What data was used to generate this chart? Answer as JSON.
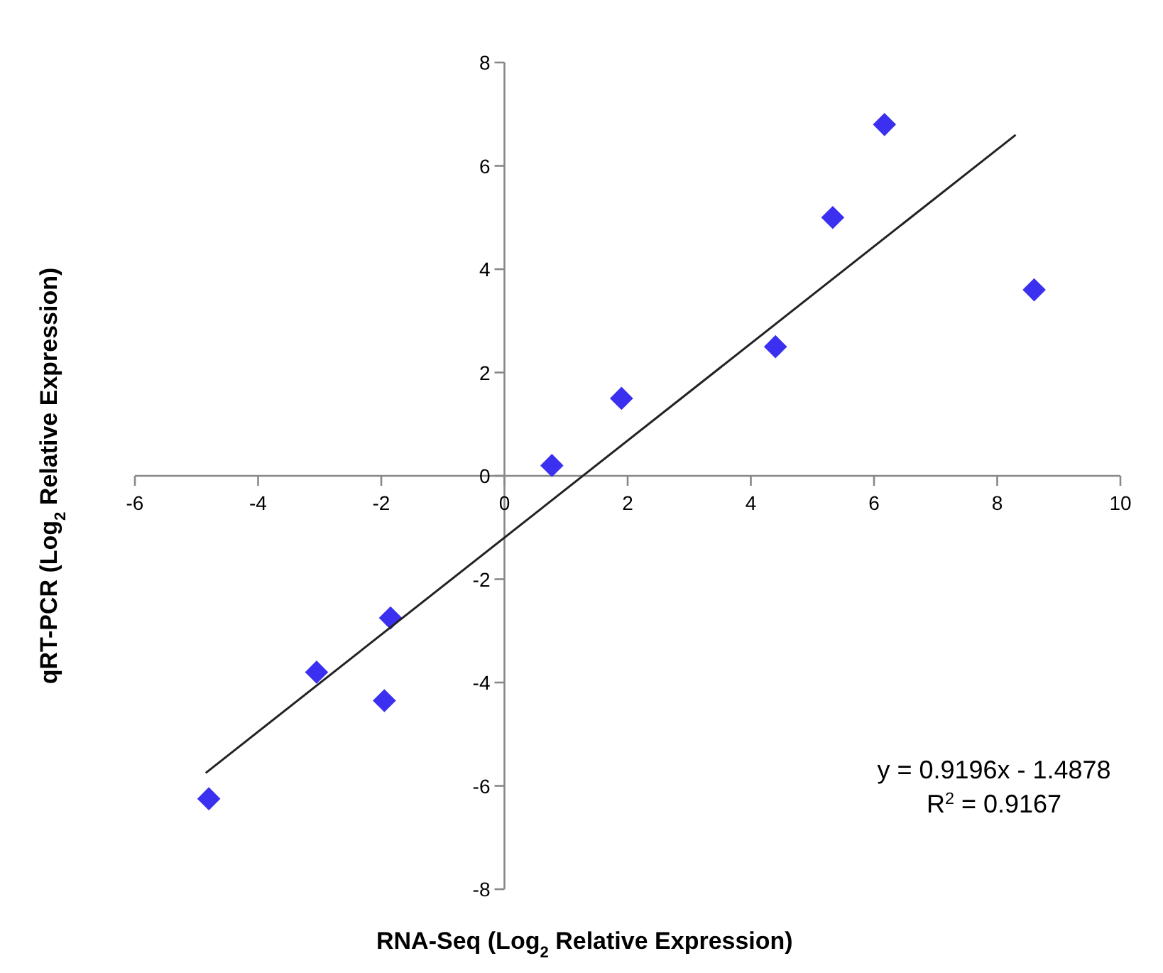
{
  "chart_data": {
    "type": "scatter",
    "xlabel": "RNA-Seq (Log$_{2}$ Relative Expression)",
    "ylabel": "qRT-PCR (Log$_{2}$ Relative Expression)",
    "xlim": [
      -6,
      10
    ],
    "ylim": [
      -8,
      8
    ],
    "xticks": [
      -6,
      -4,
      -2,
      0,
      2,
      4,
      6,
      8,
      10
    ],
    "yticks": [
      -8,
      -6,
      -4,
      -2,
      0,
      2,
      4,
      6,
      8
    ],
    "grid": false,
    "series": [
      {
        "color": "#3b30f0",
        "marker": "diamond",
        "x": [
          -4.8,
          -3.05,
          -1.85,
          -1.95,
          0.77,
          1.9,
          4.4,
          5.33,
          6.17,
          8.6
        ],
        "values": [
          -6.25,
          -3.8,
          -2.75,
          -4.35,
          0.2,
          1.5,
          2.5,
          5.0,
          6.8,
          3.6
        ]
      },
      {
        "type": "line",
        "color": "#222222",
        "x": [
          -4.85,
          8.3
        ],
        "values": [
          -5.75,
          6.6
        ]
      }
    ],
    "annotations": [
      "y = 0.9196x - 1.4878",
      "R$^{2}$ = 0.9167"
    ]
  }
}
